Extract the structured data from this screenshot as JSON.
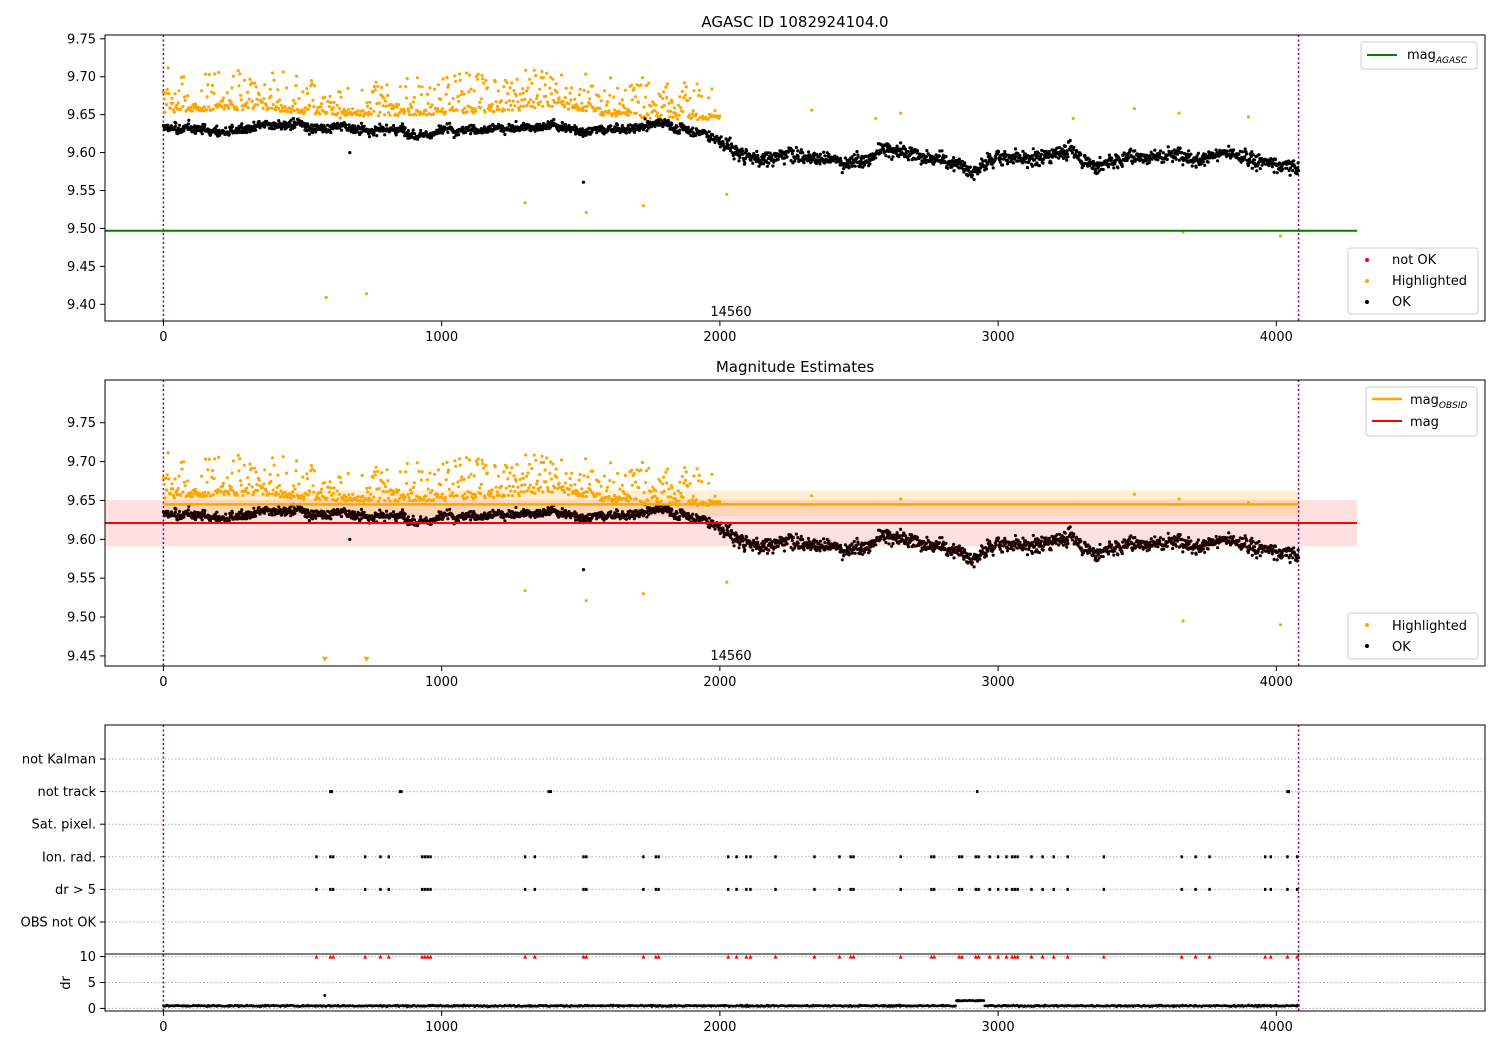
{
  "chart_data": [
    {
      "type": "scatter",
      "title": "AGASC ID 1082924104.0",
      "xlim": [
        -210,
        4750
      ],
      "ylim": [
        9.378,
        9.755
      ],
      "xticks": [
        0,
        1000,
        2000,
        3000,
        4000
      ],
      "yticks": [
        9.4,
        9.45,
        9.5,
        9.55,
        9.6,
        9.65,
        9.7,
        9.75
      ],
      "vlines": [
        0,
        4080
      ],
      "annotation": {
        "text": "14560",
        "x": 2040,
        "y": 9.39
      },
      "line_series": [
        {
          "name": "mag_AGASC",
          "color": "#008000",
          "y": 9.497,
          "x": [
            -210,
            4290
          ]
        }
      ],
      "marker_series": [
        {
          "name": "not OK",
          "color": "#ff0000"
        },
        {
          "name": "Highlighted",
          "color": "#ffa500"
        },
        {
          "name": "OK",
          "color": "#000000"
        }
      ],
      "ok_trend": [
        [
          0,
          9.632
        ],
        [
          200,
          9.628
        ],
        [
          400,
          9.633
        ],
        [
          600,
          9.633
        ],
        [
          800,
          9.628
        ],
        [
          1000,
          9.63
        ],
        [
          1200,
          9.631
        ],
        [
          1400,
          9.636
        ],
        [
          1600,
          9.631
        ],
        [
          1800,
          9.638
        ],
        [
          1950,
          9.627
        ],
        [
          2050,
          9.605
        ],
        [
          2150,
          9.592
        ],
        [
          2300,
          9.605
        ],
        [
          2450,
          9.585
        ],
        [
          2600,
          9.605
        ],
        [
          2750,
          9.595
        ],
        [
          2900,
          9.578
        ],
        [
          3000,
          9.598
        ],
        [
          3150,
          9.592
        ],
        [
          3250,
          9.605
        ],
        [
          3350,
          9.585
        ],
        [
          3500,
          9.595
        ],
        [
          3650,
          9.6
        ],
        [
          3800,
          9.597
        ],
        [
          3950,
          9.59
        ],
        [
          4080,
          9.58
        ]
      ],
      "highlighted_trend": [
        [
          0,
          9.665
        ],
        [
          300,
          9.668
        ],
        [
          600,
          9.66
        ],
        [
          900,
          9.66
        ],
        [
          1200,
          9.665
        ],
        [
          1400,
          9.672
        ],
        [
          1600,
          9.66
        ],
        [
          1800,
          9.655
        ],
        [
          2000,
          9.655
        ]
      ],
      "highlighted_outliers": [
        [
          1300,
          9.534
        ],
        [
          1520,
          9.521
        ],
        [
          1725,
          9.53
        ],
        [
          2025,
          9.545
        ],
        [
          585,
          9.409
        ],
        [
          730,
          9.414
        ],
        [
          3665,
          9.495
        ],
        [
          4015,
          9.49
        ],
        [
          3490,
          9.658
        ],
        [
          3650,
          9.652
        ],
        [
          2650,
          9.652
        ],
        [
          2330,
          9.656
        ],
        [
          3270,
          9.645
        ],
        [
          3900,
          9.647
        ],
        [
          2560,
          9.645
        ]
      ],
      "ok_outliers": [
        [
          1510,
          9.561
        ],
        [
          670,
          9.6
        ]
      ]
    },
    {
      "type": "scatter",
      "title": "Magnitude Estimates",
      "xlim": [
        -210,
        4750
      ],
      "ylim": [
        9.437,
        9.805
      ],
      "xticks": [
        0,
        1000,
        2000,
        3000,
        4000
      ],
      "yticks": [
        9.45,
        9.5,
        9.55,
        9.6,
        9.65,
        9.7,
        9.75
      ],
      "vlines": [
        0,
        4080
      ],
      "annotation": {
        "text": "14560",
        "x": 2040,
        "y": 9.45
      },
      "line_series": [
        {
          "name": "mag_OBSID",
          "color": "#ffa500",
          "y": 9.645,
          "x": [
            0,
            4080
          ],
          "band": [
            9.63,
            9.663
          ],
          "band_opacity": 0.18
        },
        {
          "name": "mag",
          "color": "#ff0000",
          "y": 9.621,
          "x": [
            -210,
            4290
          ],
          "band": [
            9.591,
            9.651
          ],
          "band_opacity": 0.12
        }
      ],
      "marker_series": [
        {
          "name": "Highlighted",
          "color": "#ffa500"
        },
        {
          "name": "OK",
          "color": "#000000"
        }
      ],
      "down_markers": [
        [
          580,
          9.445
        ],
        [
          730,
          9.445
        ]
      ]
    },
    {
      "type": "scatter",
      "title": "",
      "xlim": [
        -210,
        4750
      ],
      "xticks": [
        0,
        1000,
        2000,
        3000,
        4000
      ],
      "vlines": [
        0,
        4080
      ],
      "flag_rows": [
        "not Kalman",
        "not track",
        "Sat. pixel.",
        "Ion. rad.",
        "dr > 5",
        "OBS not OK"
      ],
      "flags": {
        "not track": [
          600,
          605,
          850,
          855,
          1385,
          1392,
          2925,
          4040,
          4045
        ],
        "Ion. rad.": [
          550,
          600,
          610,
          725,
          780,
          810,
          930,
          940,
          950,
          960,
          1300,
          1335,
          1510,
          1520,
          1725,
          1770,
          1780,
          2030,
          2060,
          2095,
          2110,
          2200,
          2340,
          2430,
          2470,
          2480,
          2650,
          2760,
          2770,
          2860,
          2870,
          2920,
          2930,
          2970,
          3000,
          3030,
          3050,
          3060,
          3070,
          3120,
          3160,
          3200,
          3250,
          3380,
          3660,
          3710,
          3760,
          3960,
          3980,
          4040,
          4075
        ],
        "dr > 5": [
          550,
          600,
          610,
          725,
          780,
          810,
          930,
          940,
          950,
          960,
          1300,
          1335,
          1510,
          1520,
          1725,
          1770,
          1780,
          2030,
          2060,
          2095,
          2110,
          2200,
          2340,
          2430,
          2470,
          2480,
          2650,
          2760,
          2770,
          2860,
          2870,
          2920,
          2930,
          2970,
          3000,
          3030,
          3050,
          3060,
          3070,
          3120,
          3160,
          3200,
          3250,
          3380,
          3660,
          3710,
          3760,
          3960,
          3980,
          4040,
          4075
        ]
      },
      "dr_ylabel": "dr",
      "dr_ylim": [
        -0.5,
        10.5
      ],
      "dr_yticks": [
        0,
        5,
        10
      ],
      "dr_baseline": 0.5,
      "dr_spike": [
        580,
        2.5
      ],
      "dr_bump": [
        2850,
        2950,
        1.5
      ],
      "dr_red_markers_y": 10
    }
  ]
}
